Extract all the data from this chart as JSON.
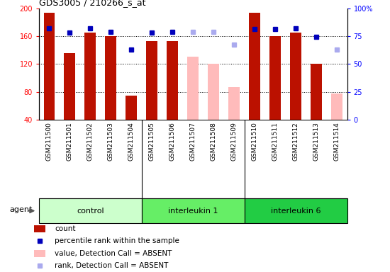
{
  "title": "GDS3005 / 210266_s_at",
  "samples": [
    "GSM211500",
    "GSM211501",
    "GSM211502",
    "GSM211503",
    "GSM211504",
    "GSM211505",
    "GSM211506",
    "GSM211507",
    "GSM211508",
    "GSM211509",
    "GSM211510",
    "GSM211511",
    "GSM211512",
    "GSM211513",
    "GSM211514"
  ],
  "bar_values": [
    193,
    135,
    165,
    160,
    75,
    153,
    153,
    null,
    null,
    null,
    193,
    160,
    165,
    120,
    null
  ],
  "bar_absent_values": [
    null,
    null,
    null,
    null,
    null,
    null,
    null,
    130,
    120,
    87,
    null,
    null,
    null,
    null,
    78
  ],
  "dot_present_pct": [
    82,
    78,
    82,
    79,
    63,
    78,
    79,
    null,
    null,
    null,
    81,
    81,
    82,
    74,
    null
  ],
  "dot_absent_pct": [
    null,
    null,
    null,
    null,
    null,
    null,
    null,
    79,
    79,
    67,
    null,
    null,
    null,
    null,
    63
  ],
  "ylim_left": [
    40,
    200
  ],
  "ylim_right": [
    0,
    100
  ],
  "yticks_left": [
    40,
    80,
    120,
    160,
    200
  ],
  "yticks_right": [
    0,
    25,
    50,
    75,
    100
  ],
  "ytick_labels_right": [
    "0",
    "25",
    "50",
    "75",
    "100%"
  ],
  "bar_color_present": "#bb1100",
  "bar_color_absent": "#ffbbbb",
  "dot_color_present": "#0000bb",
  "dot_color_absent": "#aaaaee",
  "groups": [
    {
      "name": "control",
      "start": 0,
      "end": 4,
      "color": "#ccffcc"
    },
    {
      "name": "interleukin 1",
      "start": 5,
      "end": 9,
      "color": "#66ee66"
    },
    {
      "name": "interleukin 6",
      "start": 10,
      "end": 14,
      "color": "#22cc44"
    }
  ],
  "agent_label": "agent",
  "xtick_bg": "#cccccc",
  "background_color": "#ffffff",
  "grid_lines": [
    80,
    120,
    160
  ],
  "bar_width": 0.55
}
